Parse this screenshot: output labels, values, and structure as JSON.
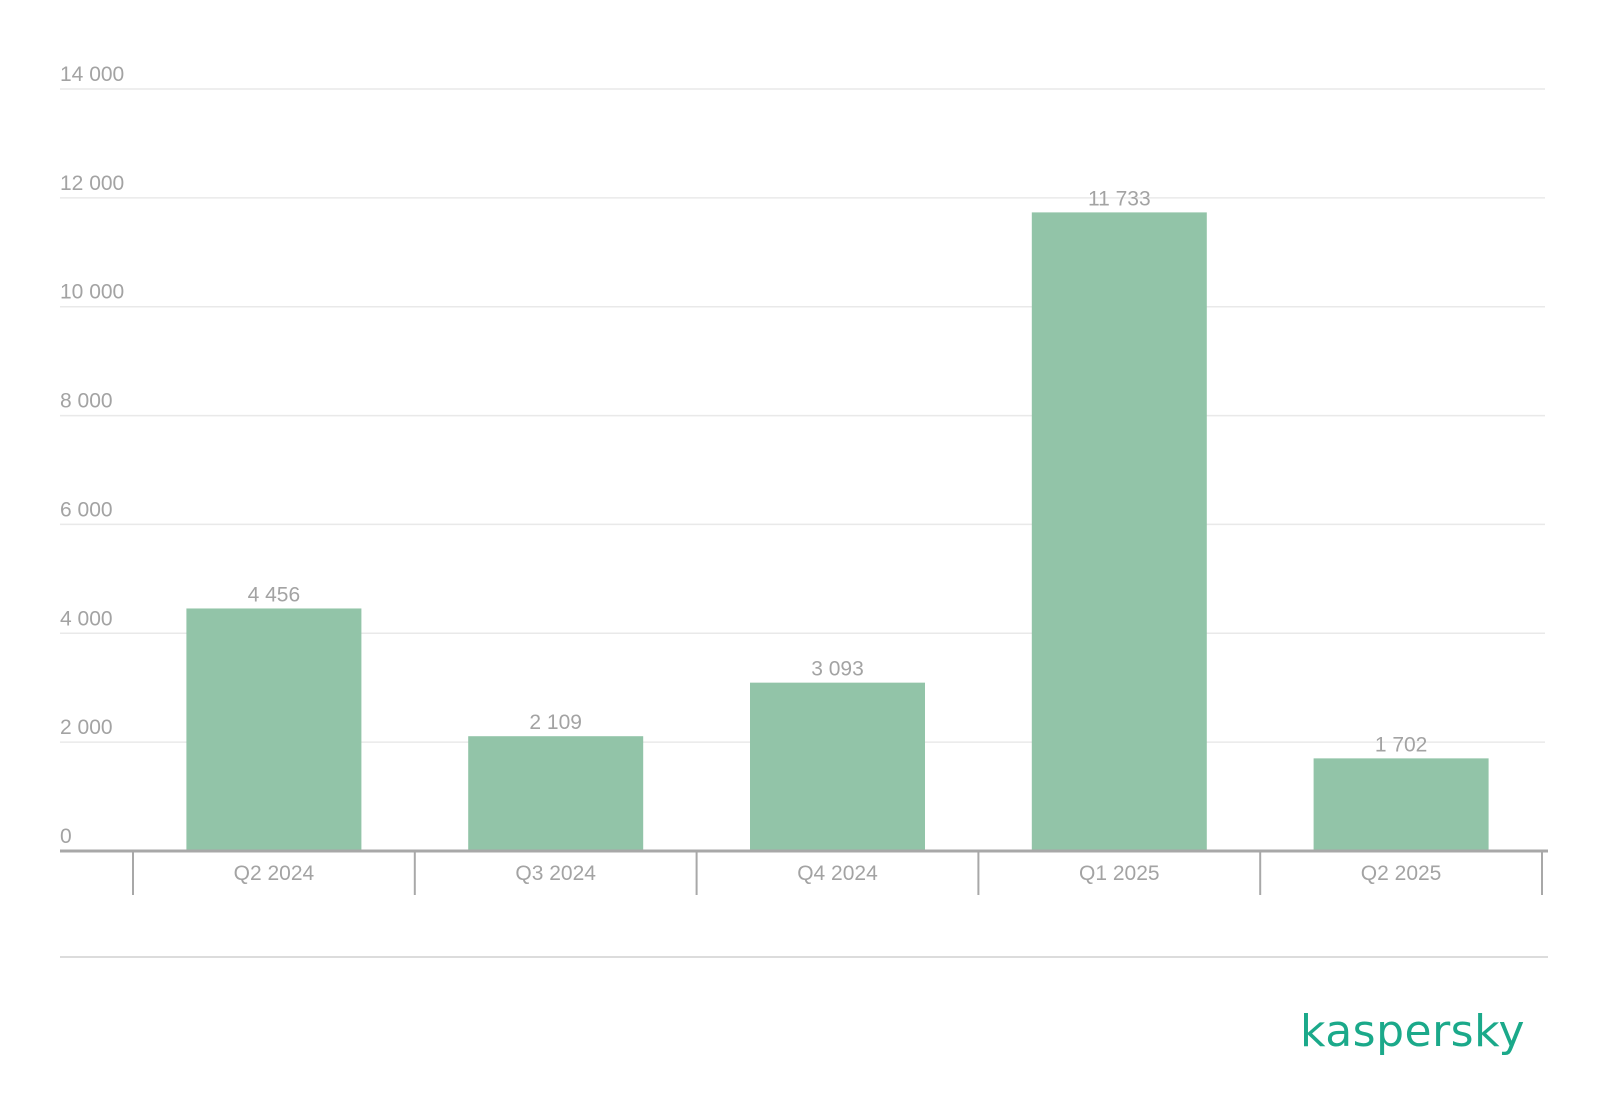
{
  "chart_data": {
    "type": "bar",
    "categories": [
      "Q2 2024",
      "Q3 2024",
      "Q4 2024",
      "Q1 2025",
      "Q2 2025"
    ],
    "values": [
      4456,
      2109,
      3093,
      11733,
      1702
    ],
    "data_labels": [
      "4 456",
      "2 109",
      "3 093",
      "11 733",
      "1 702"
    ],
    "ylim": [
      0,
      14000
    ],
    "yticks": [
      0,
      2000,
      4000,
      6000,
      8000,
      10000,
      12000,
      14000
    ],
    "ytick_labels": [
      "0",
      "2 000",
      "4 000",
      "6 000",
      "8 000",
      "10 000",
      "12 000",
      "14 000"
    ],
    "grid": true,
    "bar_color": "#92c4a8",
    "title": "",
    "xlabel": "",
    "ylabel": ""
  },
  "logo": {
    "text": "kaspersky",
    "color": "#1ba98a"
  }
}
